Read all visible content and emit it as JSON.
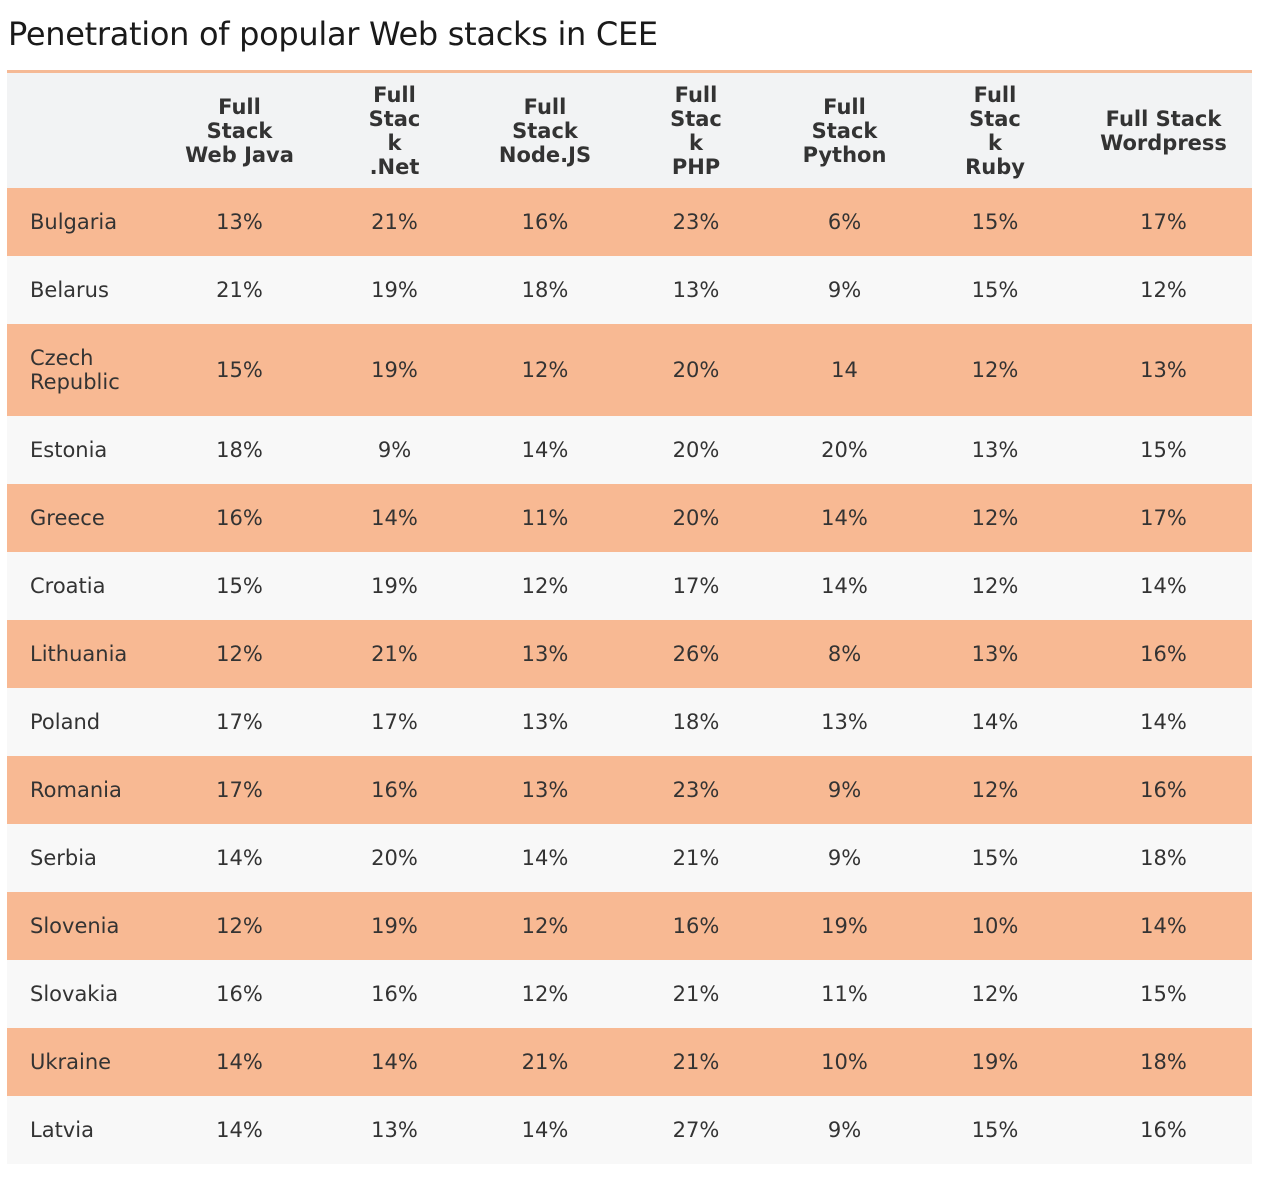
{
  "title": "Penetration of popular Web stacks in CEE",
  "colors": {
    "accent": "#f5b995",
    "row_highlight": "#f8b993",
    "row_plain": "#f8f8f8",
    "header_bg": "#f2f3f4"
  },
  "table": {
    "headers": [
      "",
      "Full Stack Web Java",
      "Full Stack .Net",
      "Full Stack Node.JS",
      "Full Stack PHP",
      "Full Stack Python",
      "Full Stack Ruby",
      "Full Stack Wordpress"
    ],
    "rows": [
      [
        "Bulgaria",
        "13%",
        "21%",
        "16%",
        "23%",
        "6%",
        "15%",
        "17%"
      ],
      [
        "Belarus",
        "21%",
        "19%",
        "18%",
        "13%",
        "9%",
        "15%",
        "12%"
      ],
      [
        "Czech Republic",
        "15%",
        "19%",
        "12%",
        "20%",
        "14",
        "12%",
        "13%"
      ],
      [
        "Estonia",
        "18%",
        "9%",
        "14%",
        "20%",
        "20%",
        "13%",
        "15%"
      ],
      [
        "Greece",
        "16%",
        "14%",
        "11%",
        "20%",
        "14%",
        "12%",
        "17%"
      ],
      [
        "Croatia",
        "15%",
        "19%",
        "12%",
        "17%",
        "14%",
        "12%",
        "14%"
      ],
      [
        "Lithuania",
        "12%",
        "21%",
        "13%",
        "26%",
        "8%",
        "13%",
        "16%"
      ],
      [
        "Poland",
        "17%",
        "17%",
        "13%",
        "18%",
        "13%",
        "14%",
        "14%"
      ],
      [
        "Romania",
        "17%",
        "16%",
        "13%",
        "23%",
        "9%",
        "12%",
        "16%"
      ],
      [
        "Serbia",
        "14%",
        "20%",
        "14%",
        "21%",
        "9%",
        "15%",
        "18%"
      ],
      [
        "Slovenia",
        "12%",
        "19%",
        "12%",
        "16%",
        "19%",
        "10%",
        "14%"
      ],
      [
        "Slovakia",
        "16%",
        "16%",
        "12%",
        "21%",
        "11%",
        "12%",
        "15%"
      ],
      [
        "Ukraine",
        "14%",
        "14%",
        "21%",
        "21%",
        "10%",
        "19%",
        "18%"
      ],
      [
        "Latvia",
        "14%",
        "13%",
        "14%",
        "27%",
        "9%",
        "15%",
        "16%"
      ]
    ]
  }
}
